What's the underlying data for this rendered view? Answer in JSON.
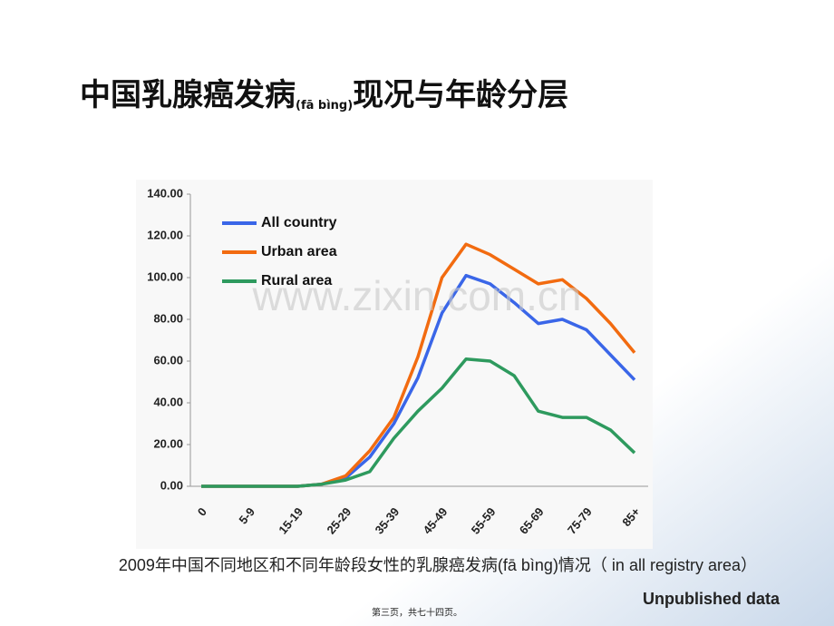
{
  "title_parts": [
    "中国乳腺癌发病",
    "(fā bìng)",
    "现况与年龄分层"
  ],
  "chart_data": {
    "type": "line",
    "categories": [
      "0",
      null,
      "5-9",
      null,
      "15-19",
      null,
      "25-29",
      null,
      "35-39",
      null,
      "45-49",
      null,
      "55-59",
      null,
      "65-69",
      null,
      "75-79",
      null,
      "85+"
    ],
    "series": [
      {
        "name": "All country",
        "color": "#3a66e8",
        "values": [
          0,
          0,
          0,
          0,
          0,
          1,
          4,
          14,
          30,
          52,
          83,
          101,
          97,
          88,
          78,
          80,
          75,
          63,
          51
        ]
      },
      {
        "name": "Urban area",
        "color": "#f26b10",
        "values": [
          0,
          0,
          0,
          0,
          0,
          1,
          5,
          17,
          33,
          62,
          100,
          116,
          111,
          104,
          97,
          99,
          90,
          78,
          64
        ]
      },
      {
        "name": "Rural area",
        "color": "#2e9a5e",
        "values": [
          0,
          0,
          0,
          0,
          0,
          1,
          3,
          7,
          23,
          36,
          47,
          61,
          60,
          53,
          36,
          33,
          33,
          27,
          16
        ]
      }
    ],
    "ylim": [
      0,
      140
    ],
    "yticks": [
      {
        "value": 0,
        "label": "0.00"
      },
      {
        "value": 20,
        "label": "20.00"
      },
      {
        "value": 40,
        "label": "40.00"
      },
      {
        "value": 60,
        "label": "60.00"
      },
      {
        "value": 80,
        "label": "80.00"
      },
      {
        "value": 100,
        "label": "100.00"
      },
      {
        "value": 120,
        "label": "120.00"
      },
      {
        "value": 140,
        "label": "140.00"
      }
    ],
    "legend": "upper left"
  },
  "watermark": "www.zixin.com.cn",
  "caption": "2009年中国不同地区和不同年龄段女性的乳腺癌发病(fā bìng)情况（ in all registry area）",
  "note": "Unpublished data",
  "footer": "第三页，共七十四页。"
}
